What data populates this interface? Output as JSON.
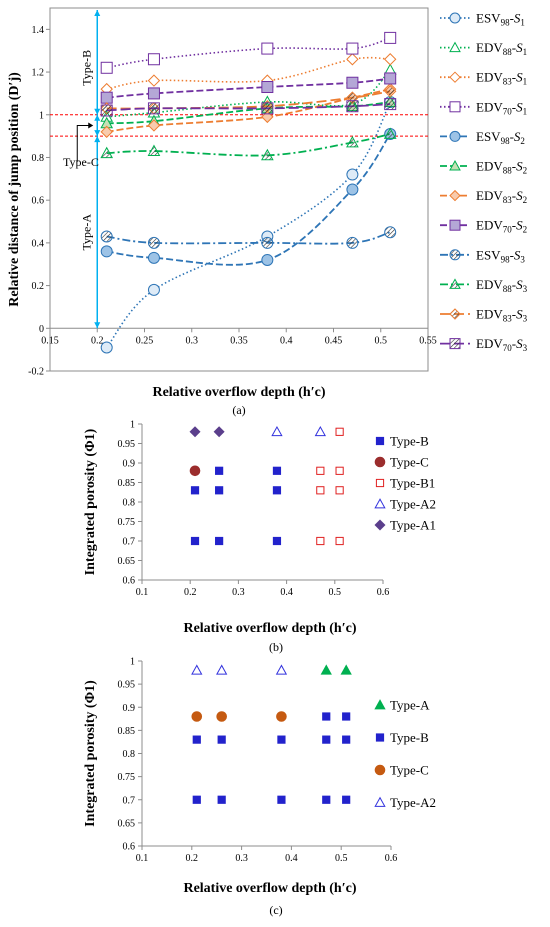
{
  "chart_data": [
    {
      "panel": "(a)",
      "type": "line",
      "xlabel": "Relative overflow depth (h′c)",
      "ylabel": "Relative distance of jump  position (D′j)",
      "xlim": [
        0.15,
        0.55
      ],
      "ylim": [
        -0.2,
        1.5
      ],
      "xticks": [
        "0.15",
        "0.2",
        "0.25",
        "0.3",
        "0.35",
        "0.4",
        "0.45",
        "0.5",
        "0.55"
      ],
      "yticks": [
        "-0.2",
        "0",
        "0.2",
        "0.4",
        "0.6",
        "0.8",
        "1",
        "1.2",
        "1.4"
      ],
      "grid": false,
      "legend_position": "right",
      "reference_lines": [
        1.0,
        0.9
      ],
      "annotations": {
        "typeB": "Type-B",
        "typeC": "Type-C",
        "typeA": "Type-A"
      },
      "series": [
        {
          "name": "ESV98-S1",
          "family": "ESV",
          "num": "98",
          "sub": "1",
          "marker": "circle",
          "color": "#2e75b6",
          "dash": "dot",
          "fill": "#deebf7",
          "x": [
            0.21,
            0.26,
            0.38,
            0.47,
            0.51
          ],
          "y": [
            -0.09,
            0.18,
            0.43,
            0.72,
            1.06
          ]
        },
        {
          "name": "EDV88-S1",
          "family": "EDV",
          "num": "88",
          "sub": "1",
          "marker": "triangle",
          "color": "#00b050",
          "dash": "dot",
          "fill": "#ffffff",
          "x": [
            0.21,
            0.26,
            0.38,
            0.47,
            0.51
          ],
          "y": [
            0.99,
            1.01,
            1.06,
            1.05,
            1.21
          ]
        },
        {
          "name": "EDV83-S1",
          "family": "EDV",
          "num": "83",
          "sub": "1",
          "marker": "diamond",
          "color": "#ed7d31",
          "dash": "dot",
          "fill": "#ffffff",
          "x": [
            0.21,
            0.26,
            0.38,
            0.47,
            0.51
          ],
          "y": [
            1.12,
            1.16,
            1.16,
            1.26,
            1.26
          ]
        },
        {
          "name": "EDV70-S1",
          "family": "EDV",
          "num": "70",
          "sub": "1",
          "marker": "square",
          "color": "#7030a0",
          "dash": "dot",
          "fill": "#ffffff",
          "x": [
            0.21,
            0.26,
            0.38,
            0.47,
            0.51
          ],
          "y": [
            1.22,
            1.26,
            1.31,
            1.31,
            1.36
          ]
        },
        {
          "name": "ESV98-S2",
          "family": "ESV",
          "num": "98",
          "sub": "2",
          "marker": "circle",
          "color": "#2e75b6",
          "dash": "dash",
          "fill": "#9dc3e6",
          "x": [
            0.21,
            0.26,
            0.38,
            0.47,
            0.51
          ],
          "y": [
            0.36,
            0.33,
            0.32,
            0.65,
            0.91
          ]
        },
        {
          "name": "EDV88-S2",
          "family": "EDV",
          "num": "88",
          "sub": "2",
          "marker": "triangle",
          "color": "#00b050",
          "dash": "dash",
          "fill": "#c6e0b4",
          "x": [
            0.21,
            0.26,
            0.38,
            0.47,
            0.51
          ],
          "y": [
            0.96,
            0.97,
            1.03,
            1.04,
            1.06
          ]
        },
        {
          "name": "EDV83-S2",
          "family": "EDV",
          "num": "83",
          "sub": "2",
          "marker": "diamond",
          "color": "#ed7d31",
          "dash": "dash",
          "fill": "#f8cbad",
          "x": [
            0.21,
            0.26,
            0.38,
            0.47,
            0.51
          ],
          "y": [
            0.92,
            0.95,
            0.99,
            1.08,
            1.12
          ]
        },
        {
          "name": "EDV70-S2",
          "family": "EDV",
          "num": "70",
          "sub": "2",
          "marker": "square",
          "color": "#7030a0",
          "dash": "dash",
          "fill": "#b4a7d6",
          "x": [
            0.21,
            0.26,
            0.38,
            0.47,
            0.51
          ],
          "y": [
            1.08,
            1.1,
            1.13,
            1.15,
            1.17
          ]
        },
        {
          "name": "ESV98-S3",
          "family": "ESV",
          "num": "98",
          "sub": "3",
          "marker": "circle",
          "color": "#2e75b6",
          "dash": "dashdot",
          "fill": "hatch",
          "x": [
            0.21,
            0.26,
            0.38,
            0.47,
            0.51
          ],
          "y": [
            0.43,
            0.4,
            0.4,
            0.4,
            0.45
          ]
        },
        {
          "name": "EDV88-S3",
          "family": "EDV",
          "num": "88",
          "sub": "3",
          "marker": "triangle",
          "color": "#00b050",
          "dash": "dashdot",
          "fill": "hatch",
          "x": [
            0.21,
            0.26,
            0.38,
            0.47,
            0.51
          ],
          "y": [
            0.82,
            0.83,
            0.81,
            0.87,
            0.91
          ]
        },
        {
          "name": "EDV83-S3",
          "family": "EDV",
          "num": "83",
          "sub": "3",
          "marker": "diamond",
          "color": "#ed7d31",
          "dash": "longdash",
          "fill": "hatch",
          "x": [
            0.21,
            0.26,
            0.38,
            0.47,
            0.51
          ],
          "y": [
            1.03,
            1.03,
            1.04,
            1.08,
            1.11
          ]
        },
        {
          "name": "EDV70-S3",
          "family": "EDV",
          "num": "70",
          "sub": "3",
          "marker": "square",
          "color": "#7030a0",
          "dash": "longdash",
          "fill": "hatch",
          "x": [
            0.21,
            0.26,
            0.38,
            0.47,
            0.51
          ],
          "y": [
            1.02,
            1.03,
            1.03,
            1.04,
            1.05
          ]
        }
      ]
    },
    {
      "panel": "(b)",
      "type": "scatter",
      "xlabel": "Relative overflow depth (h′c)",
      "ylabel": "Integrated porosity (Φ1)",
      "xlim": [
        0.1,
        0.6
      ],
      "ylim": [
        0.6,
        1.0
      ],
      "xticks": [
        "0.1",
        "0.2",
        "0.3",
        "0.4",
        "0.5",
        "0.6"
      ],
      "yticks": [
        "0.6",
        "0.65",
        "0.7",
        "0.75",
        "0.8",
        "0.85",
        "0.9",
        "0.95",
        "1"
      ],
      "grid": false,
      "legend_position": "right",
      "series": [
        {
          "name": "Type-B",
          "marker": "square",
          "color": "#2222cc",
          "fill": "#2222cc",
          "x": [
            0.21,
            0.26,
            0.38,
            0.21,
            0.26,
            0.38,
            0.26,
            0.38
          ],
          "y": [
            0.7,
            0.7,
            0.7,
            0.83,
            0.83,
            0.83,
            0.88,
            0.88
          ]
        },
        {
          "name": "Type-C",
          "marker": "circle",
          "color": "#9b2d2d",
          "fill": "#9b2d2d",
          "x": [
            0.21
          ],
          "y": [
            0.88
          ]
        },
        {
          "name": "Type-B1",
          "marker": "square",
          "color": "#e02020",
          "fill": "none",
          "x": [
            0.47,
            0.51,
            0.47,
            0.51,
            0.47,
            0.51,
            0.51
          ],
          "y": [
            0.7,
            0.7,
            0.83,
            0.83,
            0.88,
            0.88,
            0.98
          ]
        },
        {
          "name": "Type-A2",
          "marker": "triangle",
          "color": "#3333dd",
          "fill": "none",
          "x": [
            0.38,
            0.47
          ],
          "y": [
            0.98,
            0.98
          ]
        },
        {
          "name": "Type-A1",
          "marker": "diamond",
          "color": "#5b3f8c",
          "fill": "#5b3f8c",
          "x": [
            0.21,
            0.26
          ],
          "y": [
            0.98,
            0.98
          ]
        }
      ]
    },
    {
      "panel": "(c)",
      "type": "scatter",
      "xlabel": "Relative overflow depth (h′c)",
      "ylabel": "Integrated porosity (Φ1)",
      "xlim": [
        0.1,
        0.6
      ],
      "ylim": [
        0.6,
        1.0
      ],
      "xticks": [
        "0.1",
        "0.2",
        "0.3",
        "0.4",
        "0.5",
        "0.6"
      ],
      "yticks": [
        "0.6",
        "0.65",
        "0.7",
        "0.75",
        "0.8",
        "0.85",
        "0.9",
        "0.95",
        "1"
      ],
      "grid": false,
      "legend_position": "right",
      "series": [
        {
          "name": "Type-A",
          "marker": "triangle",
          "color": "#00b050",
          "fill": "#00b050",
          "x": [
            0.47,
            0.51
          ],
          "y": [
            0.98,
            0.98
          ]
        },
        {
          "name": "Type-B",
          "marker": "square",
          "color": "#2222cc",
          "fill": "#2222cc",
          "x": [
            0.21,
            0.26,
            0.38,
            0.47,
            0.51,
            0.21,
            0.26,
            0.38,
            0.47,
            0.51,
            0.47,
            0.51
          ],
          "y": [
            0.7,
            0.7,
            0.7,
            0.7,
            0.7,
            0.83,
            0.83,
            0.83,
            0.83,
            0.83,
            0.88,
            0.88
          ]
        },
        {
          "name": "Type-C",
          "marker": "circle",
          "color": "#c55a11",
          "fill": "#c55a11",
          "x": [
            0.21,
            0.26,
            0.38
          ],
          "y": [
            0.88,
            0.88,
            0.88
          ]
        },
        {
          "name": "Type-A2",
          "marker": "triangle",
          "color": "#3333dd",
          "fill": "none",
          "x": [
            0.21,
            0.26,
            0.38
          ],
          "y": [
            0.98,
            0.98,
            0.98
          ]
        }
      ]
    }
  ]
}
